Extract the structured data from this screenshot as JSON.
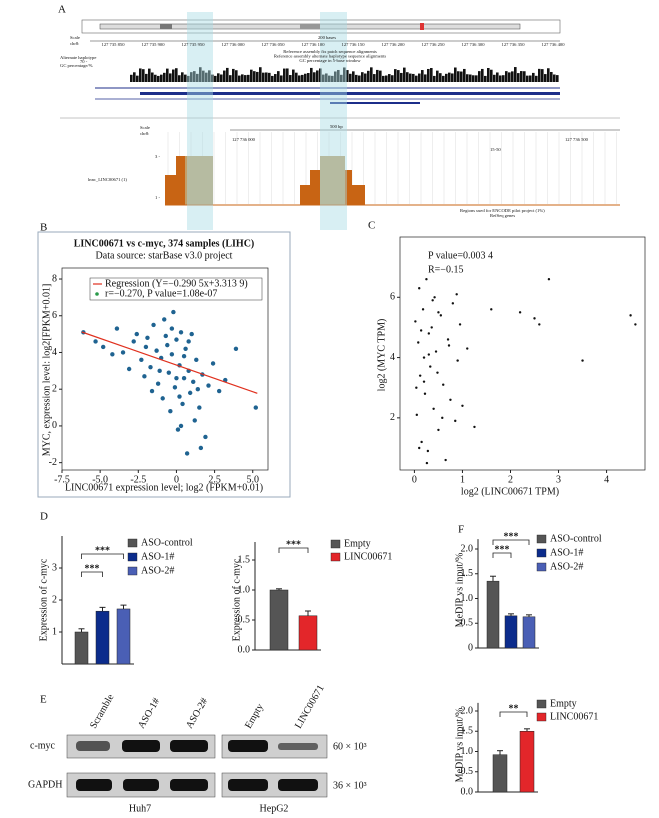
{
  "panel_labels": [
    "A",
    "B",
    "C",
    "D",
    "E",
    "F"
  ],
  "genome": {
    "scale_label": "Scale",
    "chr_label": "chr8:",
    "bases": "200 bases",
    "coords": [
      "127 735 850",
      "127 735 900",
      "127 735 950",
      "127 736 000",
      "127 736 050",
      "127 736 100",
      "127 736 150",
      "127 736 200",
      "127 736 250",
      "127 736 300",
      "127 736 350",
      "127 736 400"
    ],
    "track_labels": [
      "Alternate haplotype",
      "GC percentage/%"
    ],
    "track_notes": [
      "Reference assembly fix patch sequence alignments",
      "Reference assembly alternate haplotype sequence alignments",
      "GC percentage in 5-base window"
    ],
    "gc_max": "70 -",
    "zoom_scale_label": "Scale",
    "zoom_chr_label": "chr8:",
    "zoom_bp": "500 bp",
    "zoom_coords": [
      "127 736 000",
      "127 736 500"
    ],
    "peak_track": "lnnc_LINC00671 (1)",
    "peak_ticks": [
      "3 -",
      "1 -"
    ],
    "range_note": "15-50",
    "encode_note": "Regions used for ENCODE pilot project (1%)",
    "refseq": "RefSeq genes"
  },
  "chart_data": [
    {
      "type": "scatter",
      "title": "LINC00671 vs c-myc, 374 samples (LIHC)",
      "subtitle": "Data source: starBase v3.0 project",
      "x_label": "LINC00671 expression level; log2 (FPKM+0.01)",
      "y_label": "MYC, expression level: log2[FPKM+0.01]",
      "annotations": [
        "Regression (Y=−0.290 5x+3.313 9)",
        "r=−0.270, P value=1.08e-07"
      ],
      "color": "#1f6391",
      "fit_color": "#e0301e",
      "fit": {
        "x": [
          -6.2,
          5.3
        ],
        "y": [
          5.115,
          1.774
        ]
      },
      "xlim": [
        -7.5,
        6
      ],
      "ylim": [
        -2.4,
        8.6
      ],
      "xticks": [
        -7.5,
        {
          "value": -5,
          "label": "-5.0"
        },
        -2.5,
        0,
        2.5,
        {
          "value": 5,
          "label": "5.0"
        }
      ],
      "yticks": [
        -2,
        0,
        2,
        4,
        6,
        8
      ],
      "x": [
        -6.1,
        -5.3,
        -4.8,
        -4.2,
        -3.9,
        -3.5,
        -3.1,
        -2.8,
        -2.6,
        -2.3,
        -2.1,
        -1.9,
        -1.7,
        -1.5,
        -1.3,
        -1.2,
        -1.0,
        -0.9,
        -0.8,
        -0.6,
        -0.5,
        -0.4,
        -0.3,
        -0.2,
        -0.1,
        0,
        0.1,
        0.2,
        0.3,
        0.4,
        0.5,
        0.6,
        0.7,
        0.8,
        0.9,
        1.0,
        1.1,
        1.2,
        1.3,
        1.5,
        1.7,
        1.9,
        2.1,
        2.4,
        2.8,
        3.2,
        3.9,
        5.2,
        -1.1,
        -0.7,
        0.2,
        0.5,
        1.4,
        -2.0,
        0.0,
        0.8,
        -0.3,
        1.6,
        -1.6,
        0.3
      ],
      "y": [
        5.1,
        4.6,
        4.3,
        3.9,
        5.3,
        4.0,
        3.1,
        4.6,
        5.0,
        3.6,
        2.7,
        4.8,
        3.2,
        5.5,
        4.1,
        2.3,
        3.7,
        1.5,
        5.8,
        4.4,
        2.9,
        0.8,
        3.9,
        6.2,
        2.1,
        4.7,
        -0.2,
        3.3,
        5.1,
        1.2,
        2.6,
        4.2,
        -1.5,
        3.0,
        1.8,
        5.0,
        2.4,
        0.3,
        3.6,
        1.0,
        2.8,
        -0.6,
        2.2,
        3.4,
        1.9,
        2.5,
        4.2,
        1.0,
        3.0,
        4.9,
        1.6,
        3.8,
        2.0,
        4.3,
        2.6,
        4.6,
        5.3,
        -1.2,
        1.9,
        0.0
      ]
    },
    {
      "type": "scatter",
      "x_label": "log2 (LINC00671 TPM)",
      "y_label": "log2 (MYC TPM)",
      "annotations": [
        "P value=0.003 4",
        "R=−0.15"
      ],
      "color": "#111111",
      "xlim": [
        -0.3,
        4.8
      ],
      "ylim": [
        0.27,
        8
      ],
      "xticks": [
        0,
        1,
        2,
        3,
        4
      ],
      "yticks": [
        2,
        4,
        6
      ],
      "x": [
        0.02,
        0.05,
        0.08,
        0.1,
        0.12,
        0.15,
        0.18,
        0.2,
        0.22,
        0.25,
        0.28,
        0.3,
        0.33,
        0.36,
        0.4,
        0.42,
        0.45,
        0.5,
        0.55,
        0.6,
        0.65,
        0.7,
        0.75,
        0.8,
        0.85,
        0.9,
        0.95,
        1.0,
        1.1,
        1.25,
        1.6,
        2.2,
        2.5,
        2.6,
        2.8,
        3.5,
        4.5,
        4.6,
        0.04,
        0.14,
        0.26,
        0.38,
        0.48,
        0.58,
        0.72,
        0.88,
        0.3,
        0.2,
        0.1,
        0.5
      ],
      "y": [
        5.2,
        2.1,
        4.5,
        6.3,
        3.4,
        1.2,
        5.6,
        4.0,
        2.8,
        6.6,
        0.9,
        4.8,
        3.7,
        5.0,
        2.3,
        6.0,
        4.2,
        1.6,
        5.4,
        3.1,
        0.6,
        4.6,
        2.6,
        5.8,
        1.9,
        3.9,
        5.1,
        2.4,
        4.3,
        1.7,
        5.6,
        5.5,
        5.3,
        5.1,
        6.6,
        3.9,
        5.4,
        5.1,
        3.0,
        4.9,
        0.5,
        5.9,
        3.5,
        2.0,
        4.4,
        6.1,
        4.1,
        3.2,
        1.0,
        5.5
      ]
    },
    {
      "type": "bar",
      "y_label": "Expression of c-myc",
      "categories": [
        "ASO-control",
        "ASO-1#",
        "ASO-2#"
      ],
      "values": [
        1.0,
        1.65,
        1.72
      ],
      "errors": [
        0.1,
        0.12,
        0.12
      ],
      "colors": [
        "#555555",
        "#0c2c8c",
        "#4a5fb5"
      ],
      "ylim": [
        0,
        4
      ],
      "yticks": [
        1,
        2,
        3
      ],
      "annotations": [
        "***",
        "***"
      ]
    },
    {
      "type": "bar",
      "y_label": "Expression of c-myc",
      "categories": [
        "Empty",
        "LINC00671"
      ],
      "values": [
        1.0,
        0.57
      ],
      "errors": [
        0.02,
        0.08
      ],
      "colors": [
        "#555555",
        "#e3262a"
      ],
      "ylim": [
        0,
        1.8
      ],
      "yticks": [
        {
          "value": 0,
          "label": "0.0"
        },
        0.5,
        {
          "value": 1,
          "label": "1.0"
        },
        1.5
      ],
      "annotations": [
        "***"
      ]
    },
    {
      "type": "bar",
      "y_label": "MeDIP vs input/%",
      "categories": [
        "ASO-control",
        "ASO-1#",
        "ASO-2#"
      ],
      "values": [
        1.35,
        0.65,
        0.63
      ],
      "errors": [
        0.1,
        0.04,
        0.04
      ],
      "colors": [
        "#555555",
        "#0c2c8c",
        "#4a5fb5"
      ],
      "ylim": [
        0,
        2.2
      ],
      "yticks": [
        0,
        0.5,
        {
          "value": 1,
          "label": "1.0"
        },
        1.5,
        {
          "value": 2,
          "label": "2.0"
        }
      ],
      "annotations": [
        "***",
        "***"
      ]
    },
    {
      "type": "bar",
      "y_label": "MeDIP vs input/%",
      "categories": [
        "Empty",
        "LINC00671"
      ],
      "values": [
        0.92,
        1.5
      ],
      "errors": [
        0.1,
        0.06
      ],
      "colors": [
        "#555555",
        "#e3262a"
      ],
      "ylim": [
        0,
        2.2
      ],
      "yticks": [
        {
          "value": 0,
          "label": "0.0"
        },
        0.5,
        {
          "value": 1,
          "label": "1.0"
        },
        1.5,
        {
          "value": 2,
          "label": "2.0"
        }
      ],
      "annotations": [
        "**"
      ]
    }
  ],
  "blot": {
    "lanes": [
      "Scramble",
      "ASO-1#",
      "ASO-2#",
      "Empty",
      "LINC00671"
    ],
    "proteins": [
      "c-myc",
      "GAPDH"
    ],
    "sizes": [
      "60 × 10³",
      "36 × 10³"
    ],
    "cells": [
      "Huh7",
      "HepG2"
    ]
  }
}
